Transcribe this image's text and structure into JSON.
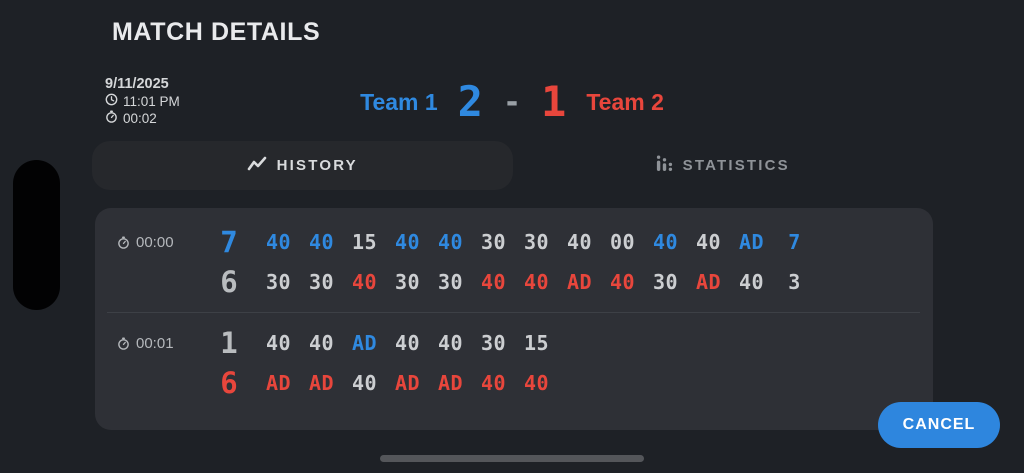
{
  "title": "MATCH DETAILS",
  "meta": {
    "date": "9/11/2025",
    "time": "11:01 PM",
    "duration": "00:02"
  },
  "scoreboard": {
    "team1_name": "Team 1",
    "team1_score": "2",
    "separator": "-",
    "team2_score": "1",
    "team2_name": "Team 2"
  },
  "tabs": {
    "history": "HISTORY",
    "statistics": "STATISTICS"
  },
  "history_games": [
    {
      "time": "00:00",
      "lines": [
        {
          "big": "7",
          "big_color": "blue",
          "points": [
            {
              "v": "40",
              "c": "blue"
            },
            {
              "v": "40",
              "c": "blue"
            },
            {
              "v": "15",
              "c": "white"
            },
            {
              "v": "40",
              "c": "blue"
            },
            {
              "v": "40",
              "c": "blue"
            },
            {
              "v": "30",
              "c": "white"
            },
            {
              "v": "30",
              "c": "white"
            },
            {
              "v": "40",
              "c": "white"
            },
            {
              "v": "00",
              "c": "white"
            },
            {
              "v": "40",
              "c": "blue"
            },
            {
              "v": "40",
              "c": "white"
            },
            {
              "v": "AD",
              "c": "blue"
            },
            {
              "v": "7",
              "c": "blue"
            }
          ]
        },
        {
          "big": "6",
          "big_color": "gray",
          "points": [
            {
              "v": "30",
              "c": "white"
            },
            {
              "v": "30",
              "c": "white"
            },
            {
              "v": "40",
              "c": "red"
            },
            {
              "v": "30",
              "c": "white"
            },
            {
              "v": "30",
              "c": "white"
            },
            {
              "v": "40",
              "c": "red"
            },
            {
              "v": "40",
              "c": "red"
            },
            {
              "v": "AD",
              "c": "red"
            },
            {
              "v": "40",
              "c": "red"
            },
            {
              "v": "30",
              "c": "white"
            },
            {
              "v": "AD",
              "c": "red"
            },
            {
              "v": "40",
              "c": "white"
            },
            {
              "v": "3",
              "c": "white"
            }
          ]
        }
      ]
    },
    {
      "time": "00:01",
      "lines": [
        {
          "big": "1",
          "big_color": "gray",
          "points": [
            {
              "v": "40",
              "c": "white"
            },
            {
              "v": "40",
              "c": "white"
            },
            {
              "v": "AD",
              "c": "blue"
            },
            {
              "v": "40",
              "c": "white"
            },
            {
              "v": "40",
              "c": "white"
            },
            {
              "v": "30",
              "c": "white"
            },
            {
              "v": "15",
              "c": "white"
            }
          ]
        },
        {
          "big": "6",
          "big_color": "red",
          "points": [
            {
              "v": "AD",
              "c": "red"
            },
            {
              "v": "AD",
              "c": "red"
            },
            {
              "v": "40",
              "c": "white"
            },
            {
              "v": "AD",
              "c": "red"
            },
            {
              "v": "AD",
              "c": "red"
            },
            {
              "v": "40",
              "c": "red"
            },
            {
              "v": "40",
              "c": "red"
            }
          ]
        }
      ]
    }
  ],
  "cancel_label": "CANCEL",
  "colors": {
    "blue": "#2f89e0",
    "red": "#e8463c",
    "white": "#ccced1",
    "gray": "#b9bcbf",
    "button_blue": "#2e86de"
  }
}
